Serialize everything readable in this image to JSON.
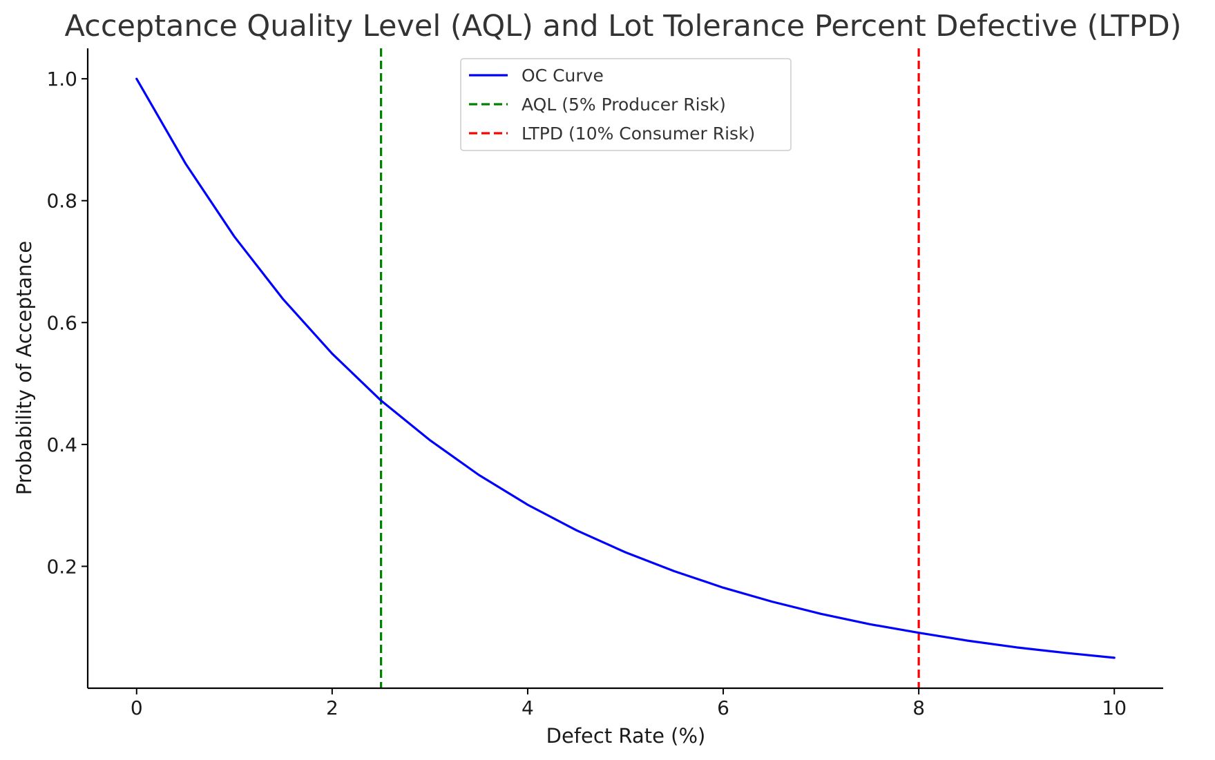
{
  "chart_data": {
    "type": "line",
    "title": "Acceptance Quality Level (AQL) and Lot Tolerance Percent Defective (LTPD)",
    "xlabel": "Defect Rate (%)",
    "ylabel": "Probability of Acceptance",
    "xlim": [
      -0.5,
      10.5
    ],
    "ylim": [
      0.0,
      1.05
    ],
    "x_ticks": [
      0,
      2,
      4,
      6,
      8,
      10
    ],
    "x_tick_labels": [
      "0",
      "2",
      "4",
      "6",
      "8",
      "10"
    ],
    "y_ticks": [
      0.2,
      0.4,
      0.6,
      0.8,
      1.0
    ],
    "y_tick_labels": [
      "0.2",
      "0.4",
      "0.6",
      "0.8",
      "1.0"
    ],
    "grid": false,
    "legend_position": "top-center",
    "series": [
      {
        "name": "OC Curve",
        "color": "#0000ff",
        "style": "solid",
        "x": [
          0,
          0.5,
          1,
          1.5,
          2,
          2.5,
          3,
          3.5,
          4,
          4.5,
          5,
          5.5,
          6,
          6.5,
          7,
          7.5,
          8,
          8.5,
          9,
          9.5,
          10
        ],
        "y": [
          1.0,
          0.861,
          0.741,
          0.638,
          0.549,
          0.472,
          0.407,
          0.35,
          0.301,
          0.259,
          0.223,
          0.192,
          0.165,
          0.142,
          0.122,
          0.105,
          0.091,
          0.078,
          0.067,
          0.058,
          0.05
        ]
      }
    ],
    "vlines": [
      {
        "name": "AQL (5% Producer Risk)",
        "x": 2.5,
        "color": "#008000",
        "style": "dashed"
      },
      {
        "name": "LTPD (10% Consumer Risk)",
        "x": 8,
        "color": "#ff0000",
        "style": "dashed"
      }
    ],
    "legend": [
      "OC Curve",
      "AQL (5% Producer Risk)",
      "LTPD (10% Consumer Risk)"
    ]
  }
}
